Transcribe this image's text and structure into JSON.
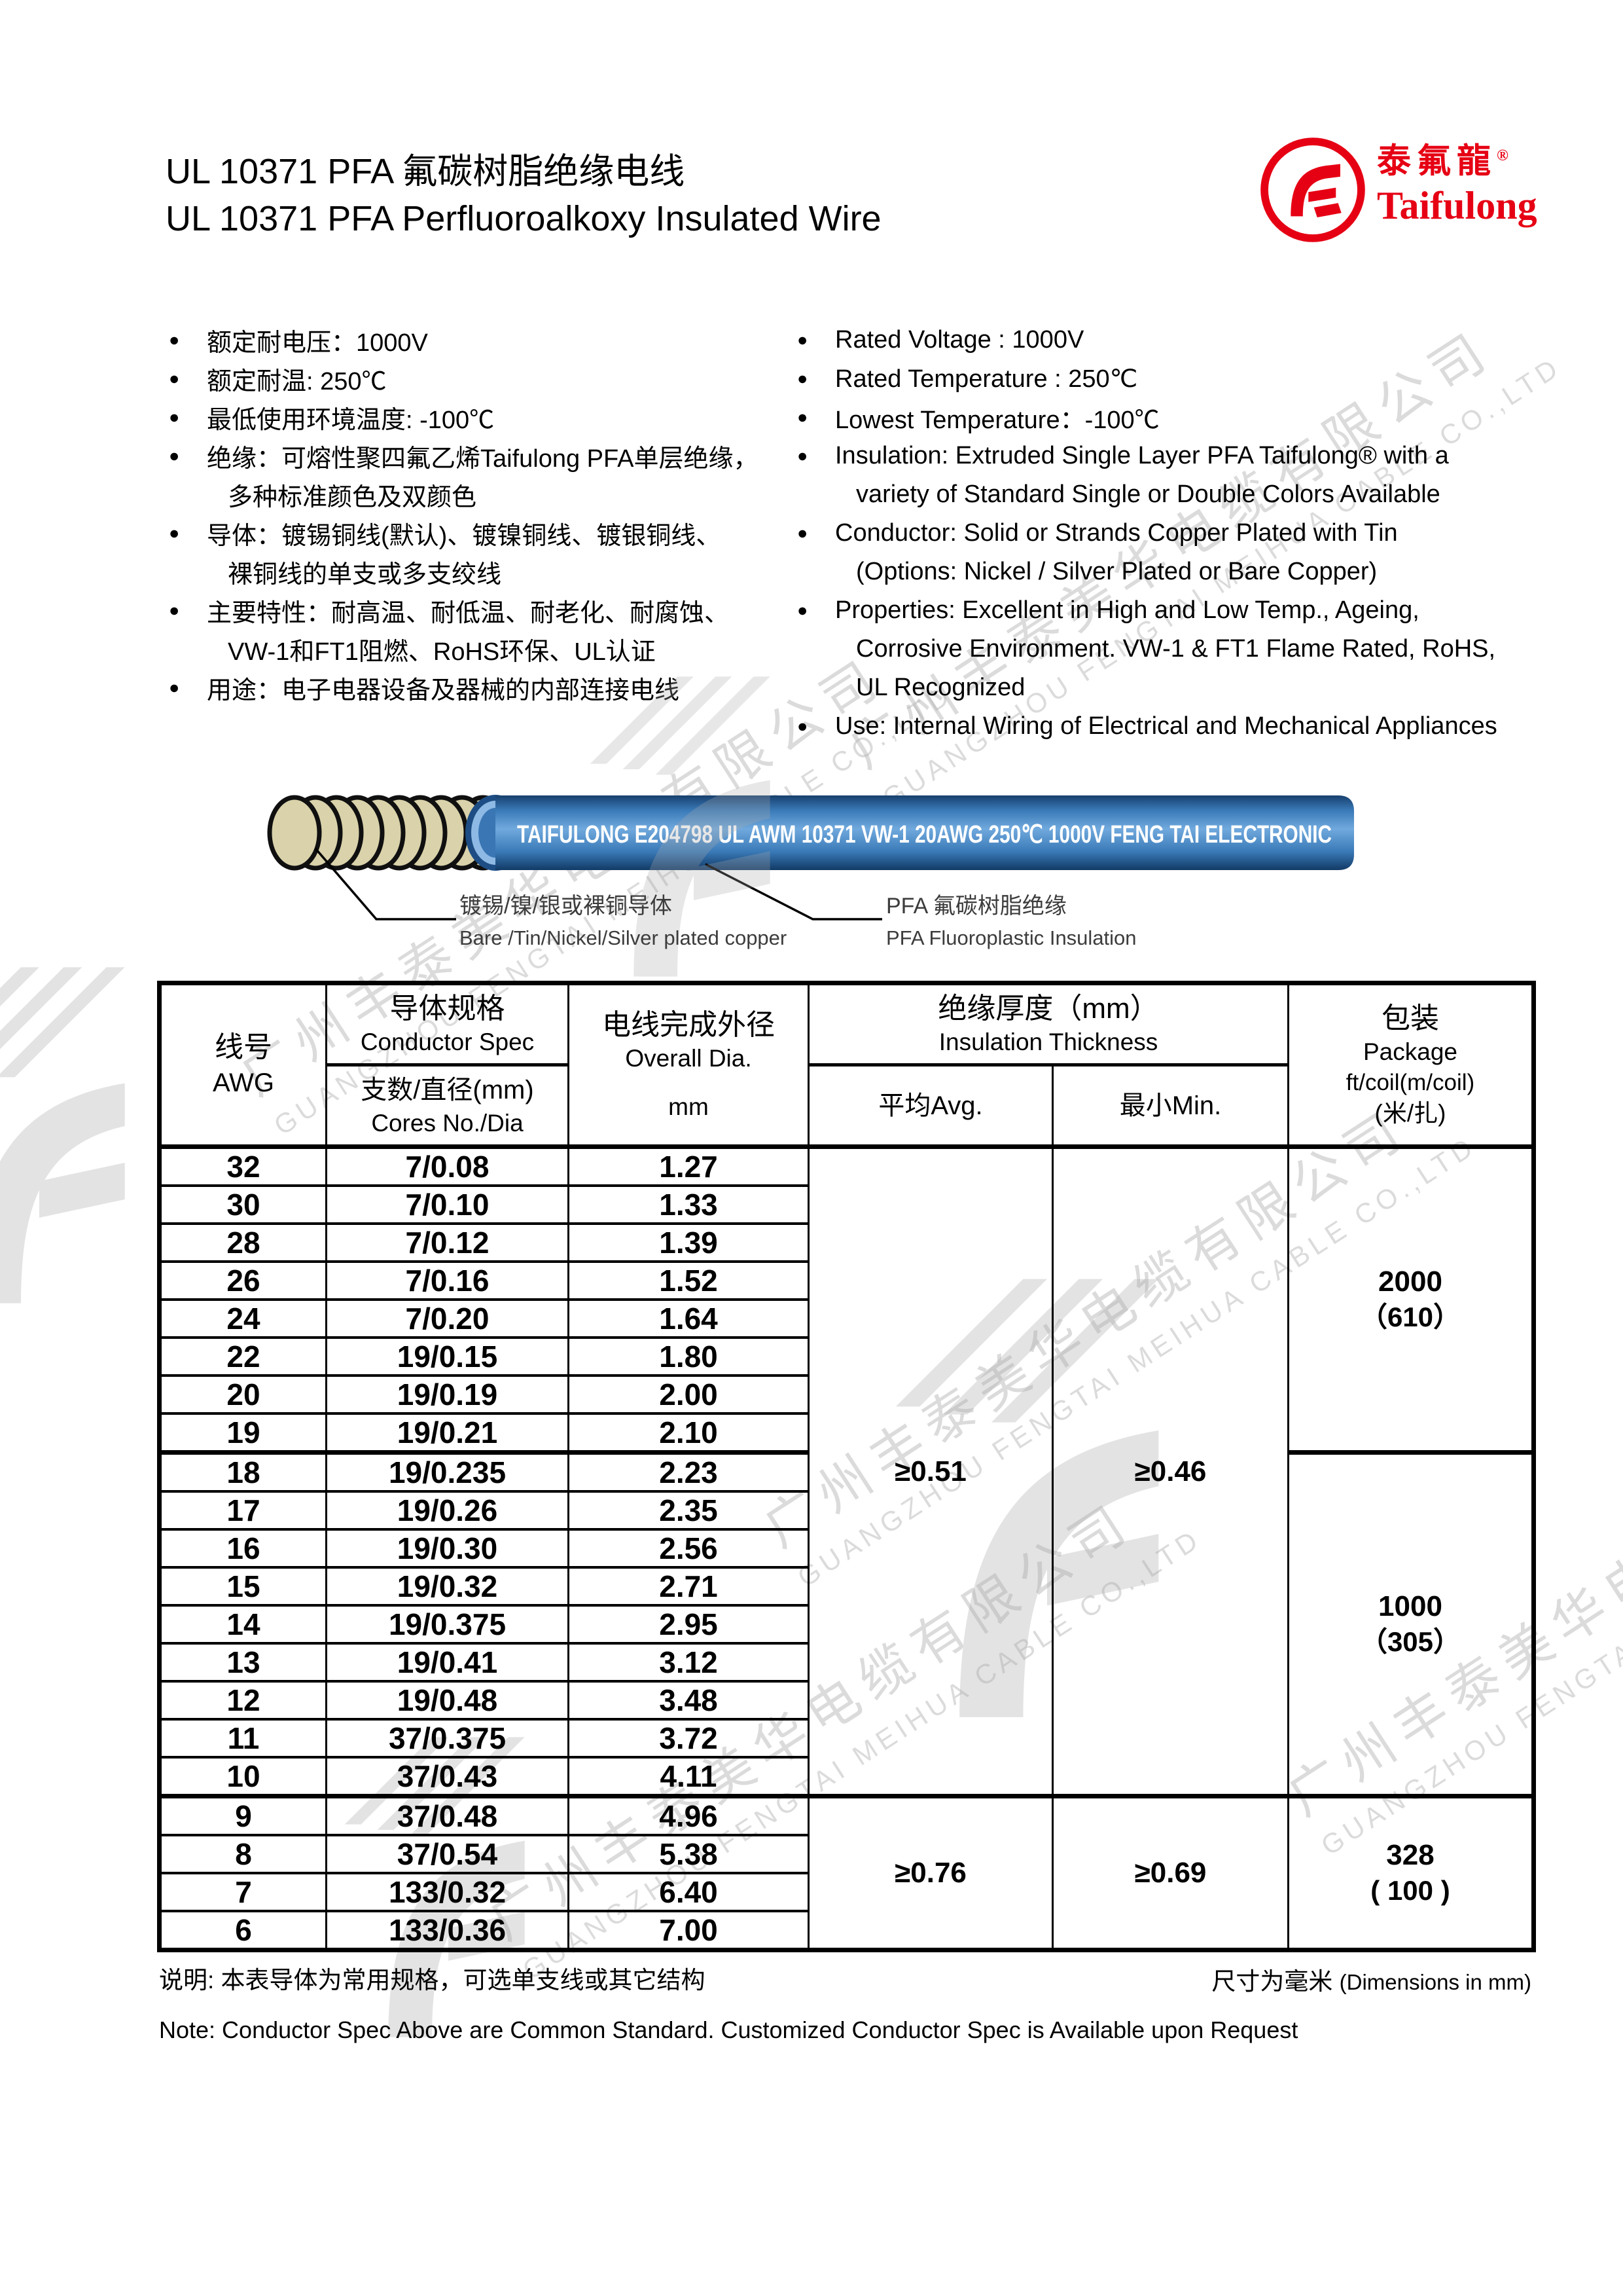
{
  "page": {
    "title_zh": "UL 10371 PFA 氟碳树脂绝缘电线",
    "title_en": "UL 10371 PFA Perfluoroalkoxy Insulated Wire"
  },
  "logo": {
    "zh": "泰氟龍",
    "reg": "®",
    "en": "Taifulong",
    "brand_color": "#e60014"
  },
  "features_zh": [
    {
      "b": true,
      "t": "额定耐电压：1000V"
    },
    {
      "b": true,
      "t": "额定耐温: 250℃"
    },
    {
      "b": true,
      "t": "最低使用环境温度: -100℃"
    },
    {
      "b": true,
      "t": "绝缘：可熔性聚四氟乙烯Taifulong PFA单层绝缘，"
    },
    {
      "b": false,
      "t": "多种标准颜色及双颜色"
    },
    {
      "b": true,
      "t": "导体：镀锡铜线(默认)、镀镍铜线、镀银铜线、"
    },
    {
      "b": false,
      "t": "裸铜线的单支或多支绞线"
    },
    {
      "b": true,
      "t": "主要特性：耐高温、耐低温、耐老化、耐腐蚀、"
    },
    {
      "b": false,
      "t": "VW-1和FT1阻燃、RoHS环保、UL认证"
    },
    {
      "b": true,
      "t": "用途：电子电器设备及器械的内部连接电线"
    }
  ],
  "features_en": [
    {
      "b": true,
      "t": "Rated Voltage : 1000V"
    },
    {
      "b": true,
      "t": "Rated Temperature : 250℃"
    },
    {
      "b": true,
      "t": "Lowest Temperature：-100℃"
    },
    {
      "b": true,
      "t": "Insulation: Extruded Single Layer PFA Taifulong® with a"
    },
    {
      "b": false,
      "t": "variety of Standard Single or Double Colors Available"
    },
    {
      "b": true,
      "t": "Conductor: Solid or Strands Copper Plated with Tin"
    },
    {
      "b": false,
      "t": "(Options: Nickel / Silver Plated or Bare Copper)"
    },
    {
      "b": true,
      "t": "Properties: Excellent in High and Low Temp., Ageing,"
    },
    {
      "b": false,
      "t": "Corrosive Environment. VW-1 & FT1 Flame Rated, RoHS,"
    },
    {
      "b": false,
      "t": "UL Recognized"
    },
    {
      "b": true,
      "t": "Use: Internal Wiring of Electrical and Mechanical Appliances"
    }
  ],
  "cable": {
    "label": "TAIFULONG  E204798  UL  AWM  10371  VW-1  20AWG  250℃  1000V  FENG TAI  ELECTRONIC",
    "callout_conductor_zh": "镀锡/镍/银或裸铜导体",
    "callout_conductor_en": "Bare /Tin/Nickel/Silver plated copper",
    "callout_insulation_zh": "PFA 氟碳树脂绝缘",
    "callout_insulation_en": "PFA Fluoroplastic Insulation",
    "body_color": "#3a7ab8",
    "conductor_color": "#d9d2aa"
  },
  "table": {
    "header": {
      "awg_zh": "线号",
      "awg_en": "AWG",
      "cond_zh": "导体规格",
      "cond_en": "Conductor Spec",
      "cores_zh": "支数/直径(mm)",
      "cores_en": "Cores No./Dia",
      "dia_zh": "电线完成外径",
      "dia_en": "Overall Dia.",
      "dia_unit": "mm",
      "ins_zh": "绝缘厚度（mm）",
      "ins_en": "Insulation Thickness",
      "avg": "平均Avg.",
      "min": "最小Min.",
      "pkg_zh": "包装",
      "pkg_en": "Package",
      "pkg_unit": "ft/coil(m/coil)",
      "pkg_unit2": "(米/扎)"
    },
    "rows": [
      [
        "32",
        "7/0.08",
        "1.27"
      ],
      [
        "30",
        "7/0.10",
        "1.33"
      ],
      [
        "28",
        "7/0.12",
        "1.39"
      ],
      [
        "26",
        "7/0.16",
        "1.52"
      ],
      [
        "24",
        "7/0.20",
        "1.64"
      ],
      [
        "22",
        "19/0.15",
        "1.80"
      ],
      [
        "20",
        "19/0.19",
        "2.00"
      ],
      [
        "19",
        "19/0.21",
        "2.10"
      ],
      [
        "18",
        "19/0.235",
        "2.23"
      ],
      [
        "17",
        "19/0.26",
        "2.35"
      ],
      [
        "16",
        "19/0.30",
        "2.56"
      ],
      [
        "15",
        "19/0.32",
        "2.71"
      ],
      [
        "14",
        "19/0.375",
        "2.95"
      ],
      [
        "13",
        "19/0.41",
        "3.12"
      ],
      [
        "12",
        "19/0.48",
        "3.48"
      ],
      [
        "11",
        "37/0.375",
        "3.72"
      ],
      [
        "10",
        "37/0.43",
        "4.11"
      ],
      [
        "9",
        "37/0.48",
        "4.96"
      ],
      [
        "8",
        "37/0.54",
        "5.38"
      ],
      [
        "7",
        "133/0.32",
        "6.40"
      ],
      [
        "6",
        "133/0.36",
        "7.00"
      ]
    ],
    "insulation_groups": [
      {
        "start": 0,
        "span": 17,
        "avg": "≥0.51",
        "min": "≥0.46"
      },
      {
        "start": 17,
        "span": 4,
        "avg": "≥0.76",
        "min": "≥0.69"
      }
    ],
    "package_groups": [
      {
        "start": 0,
        "span": 8,
        "qty": "2000",
        "alt": "（610）"
      },
      {
        "start": 8,
        "span": 9,
        "qty": "1000",
        "alt": "（305）"
      },
      {
        "start": 17,
        "span": 4,
        "qty": "328",
        "alt": "( 100 )"
      }
    ],
    "thick_after": [
      7,
      16
    ]
  },
  "notes": {
    "zh": "说明: 本表导体为常用规格，可选单支线或其它结构",
    "dim_zh": "尺寸为毫米 ",
    "dim_en": "(Dimensions in mm)",
    "en": "Note: Conductor Spec Above are Common Standard. Customized Conductor Spec is Available upon Request"
  },
  "watermark": {
    "zh": "广州丰泰美华电缆有限公司",
    "en": "GUANGZHOU FENGTAI MEIHUA CABLE CO.,LTD"
  }
}
